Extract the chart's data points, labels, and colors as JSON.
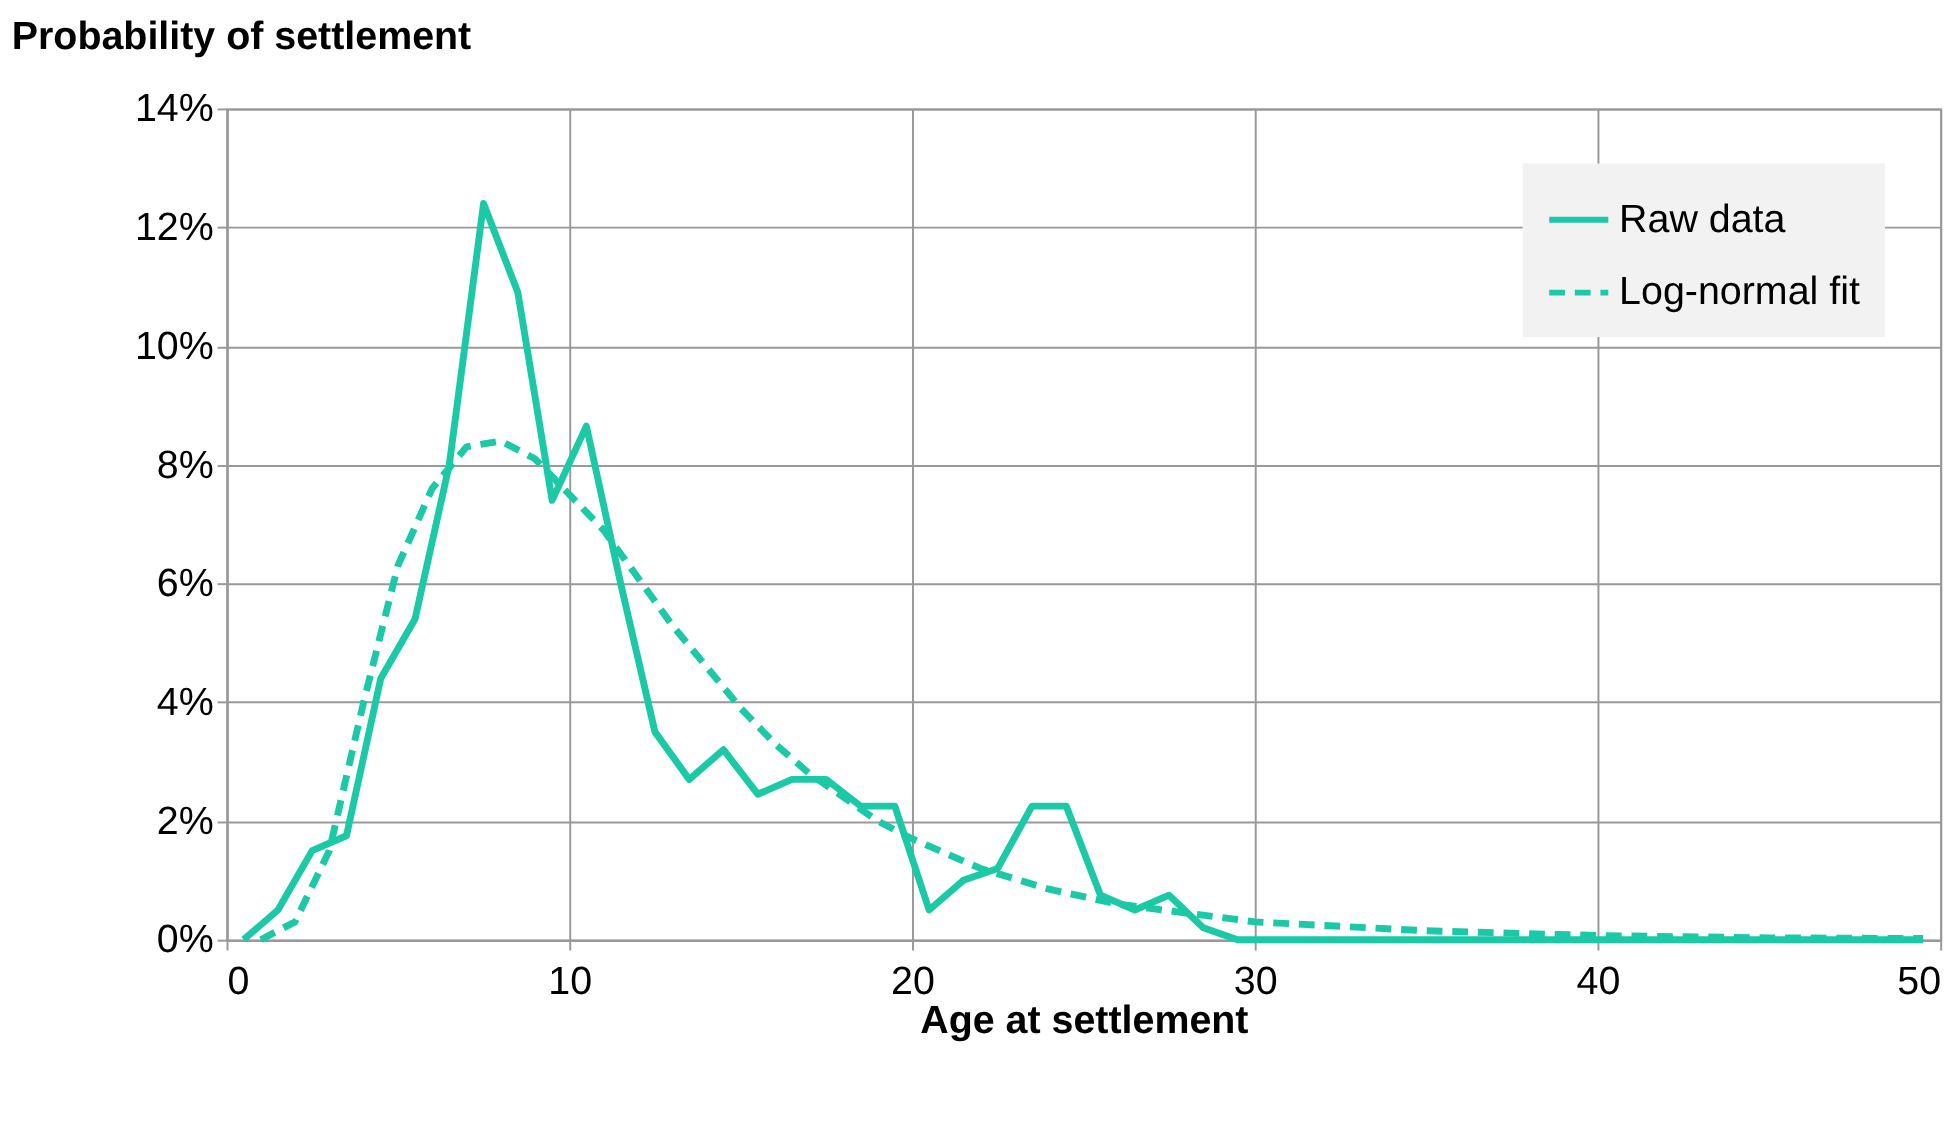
{
  "chart_data": {
    "type": "line",
    "title": "Probability of settlement",
    "xlabel": "Age at settlement",
    "xlim": [
      0,
      50
    ],
    "xticks": [
      0,
      10,
      20,
      30,
      40,
      50
    ],
    "ylim": [
      0,
      14
    ],
    "yticks": [
      {
        "value": 0,
        "label": "0%"
      },
      {
        "value": 2,
        "label": "2%"
      },
      {
        "value": 4,
        "label": "4%"
      },
      {
        "value": 6,
        "label": "6%"
      },
      {
        "value": 8,
        "label": "8%"
      },
      {
        "value": 10,
        "label": "10%"
      },
      {
        "value": 12,
        "label": "12%"
      },
      {
        "value": 14,
        "label": "14%"
      }
    ],
    "grid": true,
    "legend": "top right",
    "series": [
      {
        "name": "Raw data",
        "color": "#1cc9a6",
        "line_style": "solid",
        "x": [
          0.5,
          1.5,
          2.5,
          3.5,
          4.5,
          5.5,
          6.5,
          7.5,
          8.5,
          9.5,
          10.5,
          11.5,
          12.5,
          13.5,
          14.5,
          15.5,
          16.5,
          17.5,
          18.5,
          19.5,
          20.5,
          21.5,
          22.5,
          23.5,
          24.5,
          25.5,
          26.5,
          27.5,
          28.5,
          29.5,
          35,
          40,
          45,
          49.5
        ],
        "values": [
          0,
          0.5,
          1.5,
          1.75,
          4.4,
          5.4,
          8.0,
          12.4,
          10.9,
          7.4,
          8.65,
          6.0,
          3.5,
          2.7,
          3.2,
          2.45,
          2.7,
          2.7,
          2.25,
          2.25,
          0.5,
          1.0,
          1.2,
          2.25,
          2.25,
          0.75,
          0.5,
          0.75,
          0.2,
          0,
          0,
          0,
          0,
          0
        ]
      },
      {
        "name": "Log-normal fit",
        "color": "#1cc9a6",
        "line_style": "dashed",
        "x": [
          1,
          2,
          3,
          4,
          5,
          6,
          7,
          8,
          9,
          10,
          11,
          12,
          13,
          14,
          15,
          16,
          17,
          18,
          19,
          20,
          22,
          24,
          26,
          28,
          30,
          35,
          40,
          45,
          49.5
        ],
        "values": [
          0,
          0.3,
          1.5,
          4.0,
          6.3,
          7.6,
          8.3,
          8.4,
          8.1,
          7.5,
          6.9,
          6.1,
          5.3,
          4.6,
          3.9,
          3.3,
          2.8,
          2.4,
          2.0,
          1.7,
          1.2,
          0.85,
          0.6,
          0.45,
          0.3,
          0.15,
          0.07,
          0.03,
          0.02
        ]
      }
    ]
  }
}
